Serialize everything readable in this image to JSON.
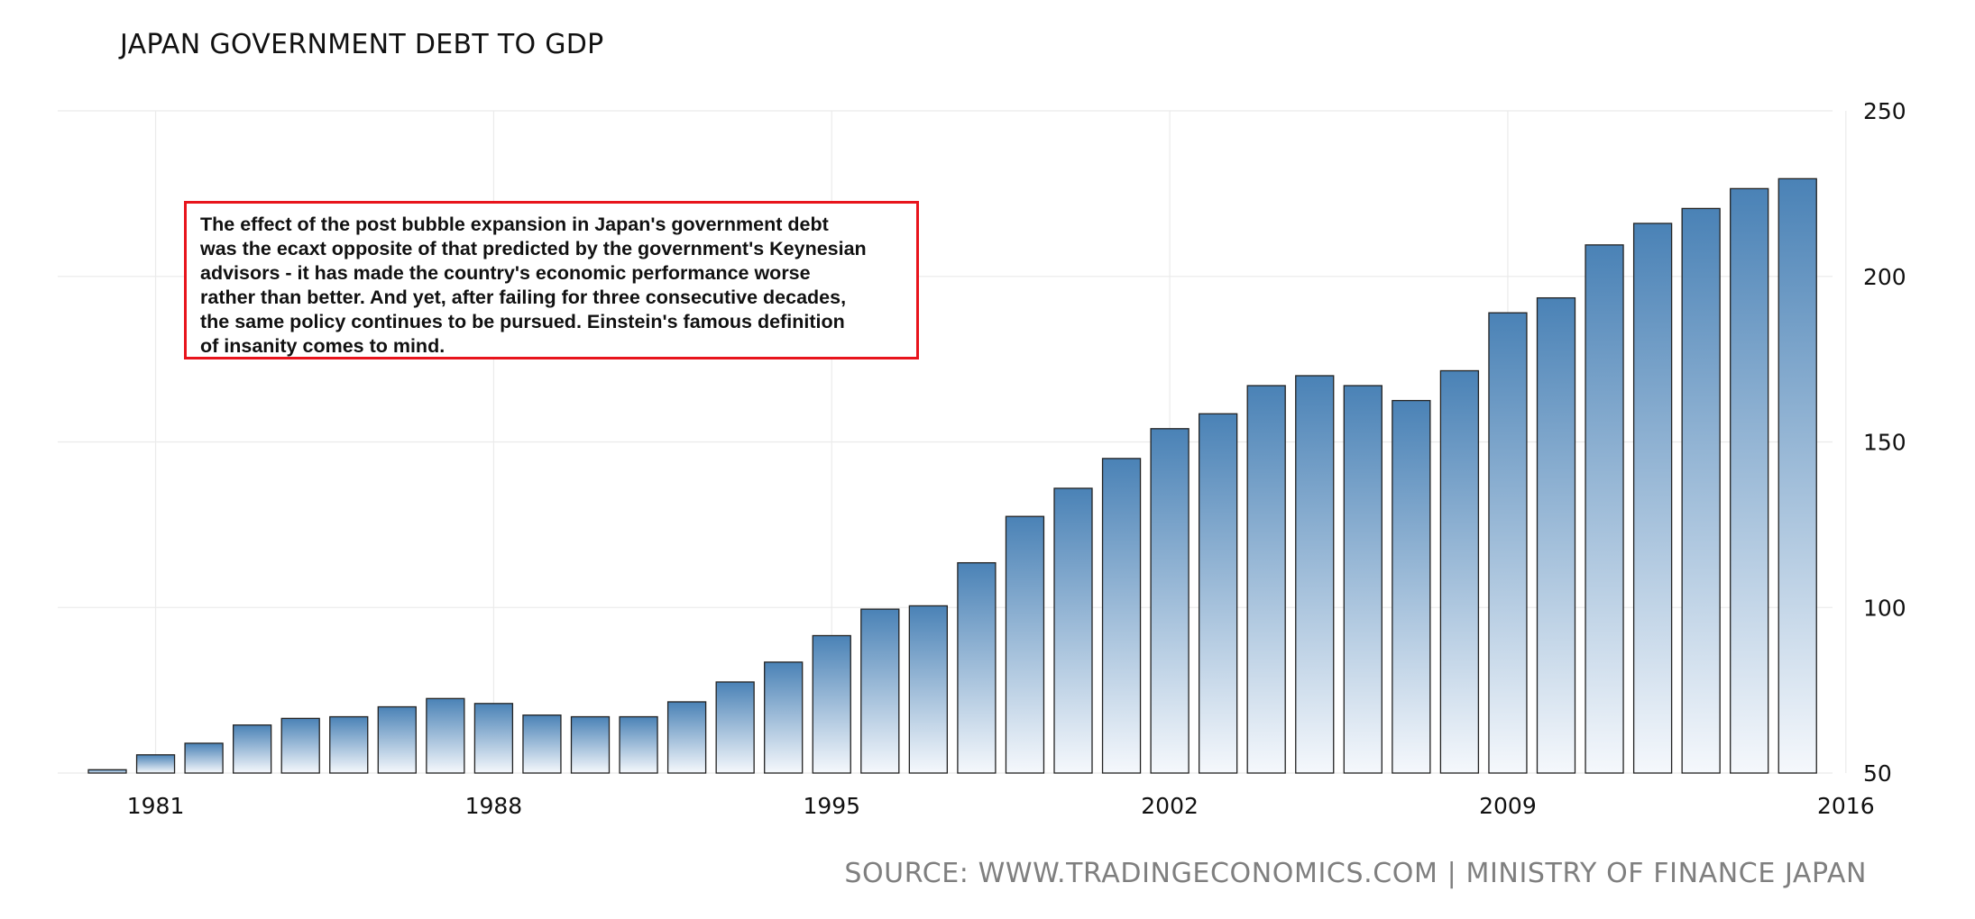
{
  "source": "SOURCE: WWW.TRADINGECONOMICS.COM | MINISTRY OF FINANCE JAPAN",
  "annotation": "The effect of the post bubble expansion in Japan's government debt\nwas the ecaxt opposite of that predicted by the government's Keynesian\nadvisors - it has made the country's economic performance worse\nrather than better. And yet, after failing for three consecutive decades,\nthe same policy continues to be pursued.  Einstein's famous definition\nof insanity comes to mind.",
  "colors": {
    "bar_top": "#4a82b6",
    "bar_bottom": "#f5f8fc",
    "bar_outline": "#222222",
    "annotation_border": "#e8141c",
    "source_text": "#7f7f7f",
    "gridline": "#ebebeb"
  },
  "chart_data": {
    "type": "bar",
    "title": "JAPAN GOVERNMENT DEBT TO GDP",
    "xlabel": "",
    "ylabel": "",
    "categories": [
      "1980",
      "1981",
      "1982",
      "1983",
      "1984",
      "1985",
      "1986",
      "1987",
      "1988",
      "1989",
      "1990",
      "1991",
      "1992",
      "1993",
      "1994",
      "1995",
      "1996",
      "1997",
      "1998",
      "1999",
      "2000",
      "2001",
      "2002",
      "2003",
      "2004",
      "2005",
      "2006",
      "2007",
      "2008",
      "2009",
      "2010",
      "2011",
      "2012",
      "2013",
      "2014",
      "2015"
    ],
    "values": [
      51,
      55.5,
      59,
      64.5,
      66.5,
      67,
      70,
      72.5,
      71,
      67.5,
      67,
      67,
      71.5,
      77.5,
      83.5,
      91.5,
      99.5,
      100.5,
      113.5,
      127.5,
      136,
      145,
      154,
      158.5,
      167,
      170,
      167,
      162.5,
      171.5,
      189,
      193.5,
      209.5,
      216,
      220.5,
      226.5,
      229.5
    ],
    "ylim": [
      50,
      250
    ],
    "yticks": [
      50,
      100,
      150,
      200,
      250
    ],
    "xticks": [
      "1981",
      "1988",
      "1995",
      "2002",
      "2009",
      "2016"
    ],
    "y_axis_position": "right",
    "grid": true,
    "legend": "none"
  }
}
